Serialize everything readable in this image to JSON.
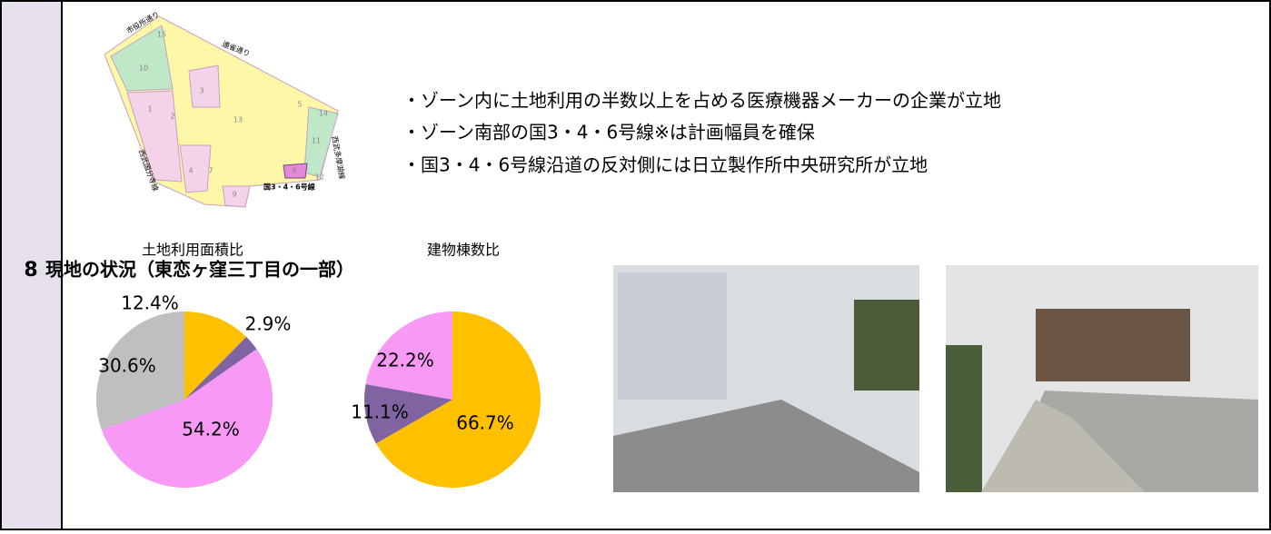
{
  "row_number": "8",
  "map": {
    "streets": [
      "市役所通り",
      "連雀通り",
      "西武国分寺線",
      "西武多摩湖線",
      "国3・4・6号線"
    ],
    "parcels": [
      "15",
      "10",
      "3",
      "1",
      "2",
      "13",
      "5",
      "14",
      "11",
      "4",
      "7",
      "8",
      "12",
      "9"
    ]
  },
  "heading": "現地の状況（東恋ヶ窪三丁目の一部）",
  "bullets": [
    "・ゾーン内に土地利用の半数以上を占める医療機器メーカーの企業が立地",
    "・ゾーン南部の国3・4・6号線※は計画幅員を確保",
    "・国3・4・6号線沿道の反対側には日立製作所中央研究所が立地"
  ],
  "chart_data": [
    {
      "type": "pie",
      "title": "土地利用面積比",
      "values": [
        12.4,
        2.9,
        54.2,
        30.6
      ],
      "value_labels": [
        "12.4%",
        "2.9%",
        "54.2%",
        "30.6%"
      ],
      "colors": [
        "#ffc000",
        "#8064a2",
        "#f799f5",
        "#bfbfbf"
      ]
    },
    {
      "type": "pie",
      "title": "建物棟数比",
      "values": [
        66.7,
        11.1,
        22.2
      ],
      "value_labels": [
        "66.7%",
        "11.1%",
        "22.2%"
      ],
      "colors": [
        "#ffc000",
        "#8064a2",
        "#f799f5"
      ]
    }
  ]
}
